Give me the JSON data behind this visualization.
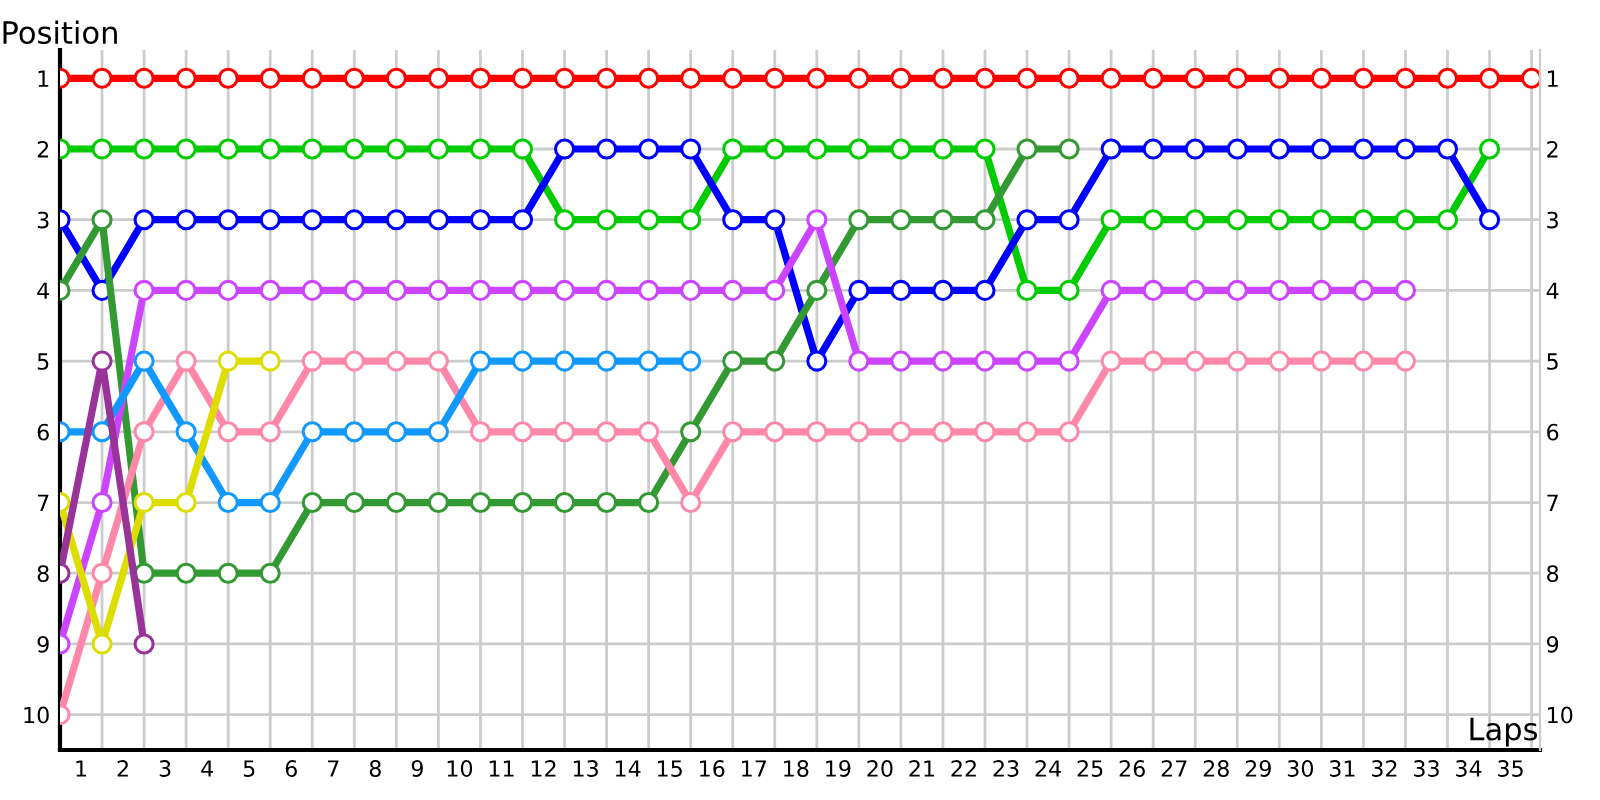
{
  "chart_data": {
    "type": "line",
    "xlabel": "Laps",
    "ylabel": "Position",
    "x": [
      0,
      1,
      2,
      3,
      4,
      5,
      6,
      7,
      8,
      9,
      10,
      11,
      12,
      13,
      14,
      15,
      16,
      17,
      18,
      19,
      20,
      21,
      22,
      23,
      24,
      25,
      26,
      27,
      28,
      29,
      30,
      31,
      32,
      33,
      34,
      35
    ],
    "xlim": [
      0,
      35.2
    ],
    "ylim": [
      10.5,
      0.6
    ],
    "y2lim": [
      10.5,
      0.6
    ],
    "xticks": [
      {
        "value": 0,
        "label": null
      },
      {
        "value": 1,
        "label": null
      },
      {
        "value": 2,
        "label": null
      },
      {
        "value": 3,
        "label": null
      },
      {
        "value": 4,
        "label": null
      },
      {
        "value": 5,
        "label": null
      },
      {
        "value": 6,
        "label": null
      },
      {
        "value": 7,
        "label": null
      },
      {
        "value": 8,
        "label": null
      },
      {
        "value": 9,
        "label": null
      },
      {
        "value": 10,
        "label": null
      },
      {
        "value": 11,
        "label": null
      },
      {
        "value": 12,
        "label": null
      },
      {
        "value": 13,
        "label": null
      },
      {
        "value": 14,
        "label": null
      },
      {
        "value": 15,
        "label": null
      },
      {
        "value": 16,
        "label": null
      },
      {
        "value": 17,
        "label": null
      },
      {
        "value": 18,
        "label": null
      },
      {
        "value": 19,
        "label": null
      },
      {
        "value": 20,
        "label": null
      },
      {
        "value": 21,
        "label": null
      },
      {
        "value": 22,
        "label": null
      },
      {
        "value": 23,
        "label": null
      },
      {
        "value": 24,
        "label": null
      },
      {
        "value": 25,
        "label": null
      },
      {
        "value": 26,
        "label": null
      },
      {
        "value": 27,
        "label": null
      },
      {
        "value": 28,
        "label": null
      },
      {
        "value": 29,
        "label": null
      },
      {
        "value": 30,
        "label": null
      },
      {
        "value": 31,
        "label": null
      },
      {
        "value": 32,
        "label": null
      },
      {
        "value": 33,
        "label": null
      },
      {
        "value": 34,
        "label": null
      },
      {
        "value": 35,
        "label": null
      },
      {
        "value": 0.5,
        "label": "1"
      },
      {
        "value": 1.5,
        "label": "2"
      },
      {
        "value": 2.5,
        "label": "3"
      },
      {
        "value": 3.5,
        "label": "4"
      },
      {
        "value": 4.5,
        "label": "5"
      },
      {
        "value": 5.5,
        "label": "6"
      },
      {
        "value": 6.5,
        "label": "7"
      },
      {
        "value": 7.5,
        "label": "8"
      },
      {
        "value": 8.5,
        "label": "9"
      },
      {
        "value": 9.5,
        "label": "10"
      },
      {
        "value": 10.5,
        "label": "11"
      },
      {
        "value": 11.5,
        "label": "12"
      },
      {
        "value": 12.5,
        "label": "13"
      },
      {
        "value": 13.5,
        "label": "14"
      },
      {
        "value": 14.5,
        "label": "15"
      },
      {
        "value": 15.5,
        "label": "16"
      },
      {
        "value": 16.5,
        "label": "17"
      },
      {
        "value": 17.5,
        "label": "18"
      },
      {
        "value": 18.5,
        "label": "19"
      },
      {
        "value": 19.5,
        "label": "20"
      },
      {
        "value": 20.5,
        "label": "21"
      },
      {
        "value": 21.5,
        "label": "22"
      },
      {
        "value": 22.5,
        "label": "23"
      },
      {
        "value": 23.5,
        "label": "24"
      },
      {
        "value": 24.5,
        "label": "25"
      },
      {
        "value": 25.5,
        "label": "26"
      },
      {
        "value": 26.5,
        "label": "27"
      },
      {
        "value": 27.5,
        "label": "28"
      },
      {
        "value": 28.5,
        "label": "29"
      },
      {
        "value": 29.5,
        "label": "30"
      },
      {
        "value": 30.5,
        "label": "31"
      },
      {
        "value": 31.5,
        "label": "32"
      },
      {
        "value": 32.5,
        "label": "33"
      },
      {
        "value": 33.5,
        "label": "34"
      },
      {
        "value": 34.5,
        "label": "35"
      }
    ],
    "yticks": [
      1,
      2,
      3,
      4,
      5,
      6,
      7,
      8,
      9,
      10
    ],
    "y2ticks": [
      1,
      2,
      3,
      4,
      5,
      6,
      7,
      8,
      9,
      10
    ],
    "grid": true,
    "marker": "circle",
    "line_style": "solid",
    "series": [
      {
        "color": "#ff0000",
        "values": [
          1,
          1,
          1,
          1,
          1,
          1,
          1,
          1,
          1,
          1,
          1,
          1,
          1,
          1,
          1,
          1,
          1,
          1,
          1,
          1,
          1,
          1,
          1,
          1,
          1,
          1,
          1,
          1,
          1,
          1,
          1,
          1,
          1,
          1,
          1,
          1
        ]
      },
      {
        "color": "#00cc00",
        "values": [
          2,
          2,
          2,
          2,
          2,
          2,
          2,
          2,
          2,
          2,
          2,
          2,
          3,
          3,
          3,
          3,
          2,
          2,
          2,
          2,
          2,
          2,
          2,
          4,
          4,
          3,
          3,
          3,
          3,
          3,
          3,
          3,
          3,
          3,
          2,
          null
        ]
      },
      {
        "color": "#0000ff",
        "values": [
          3,
          4,
          3,
          3,
          3,
          3,
          3,
          3,
          3,
          3,
          3,
          3,
          2,
          2,
          2,
          2,
          3,
          3,
          5,
          4,
          4,
          4,
          4,
          3,
          3,
          2,
          2,
          2,
          2,
          2,
          2,
          2,
          2,
          2,
          3,
          null
        ]
      },
      {
        "color": "#339933",
        "values": [
          4,
          3,
          8,
          8,
          8,
          8,
          7,
          7,
          7,
          7,
          7,
          7,
          7,
          7,
          7,
          6,
          5,
          5,
          4,
          3,
          3,
          3,
          3,
          2,
          2,
          null,
          null,
          null,
          null,
          null,
          null,
          null,
          null,
          null,
          null,
          null
        ]
      },
      {
        "color": "#cc44ff",
        "values": [
          9,
          7,
          4,
          4,
          4,
          4,
          4,
          4,
          4,
          4,
          4,
          4,
          4,
          4,
          4,
          4,
          4,
          4,
          3,
          5,
          5,
          5,
          5,
          5,
          5,
          4,
          4,
          4,
          4,
          4,
          4,
          4,
          4,
          null,
          null,
          null
        ]
      },
      {
        "color": "#ff88aa",
        "values": [
          10,
          8,
          6,
          5,
          6,
          6,
          5,
          5,
          5,
          5,
          6,
          6,
          6,
          6,
          6,
          7,
          6,
          6,
          6,
          6,
          6,
          6,
          6,
          6,
          6,
          5,
          5,
          5,
          5,
          5,
          5,
          5,
          5,
          null,
          null,
          null
        ]
      },
      {
        "color": "#1199ff",
        "values": [
          6,
          6,
          5,
          6,
          7,
          7,
          6,
          6,
          6,
          6,
          5,
          5,
          5,
          5,
          5,
          5,
          null,
          null,
          null,
          null,
          null,
          null,
          null,
          null,
          null,
          null,
          null,
          null,
          null,
          null,
          null,
          null,
          null,
          null,
          null,
          null
        ]
      },
      {
        "color": "#dddd00",
        "values": [
          7,
          9,
          7,
          7,
          5,
          5,
          null,
          null,
          null,
          null,
          null,
          null,
          null,
          null,
          null,
          null,
          null,
          null,
          null,
          null,
          null,
          null,
          null,
          null,
          null,
          null,
          null,
          null,
          null,
          null,
          null,
          null,
          null,
          null,
          null,
          null
        ]
      },
      {
        "color": "#993399",
        "values": [
          8,
          5,
          9,
          null,
          null,
          null,
          null,
          null,
          null,
          null,
          null,
          null,
          null,
          null,
          null,
          null,
          null,
          null,
          null,
          null,
          null,
          null,
          null,
          null,
          null,
          null,
          null,
          null,
          null,
          null,
          null,
          null,
          null,
          null,
          null,
          null
        ]
      }
    ]
  }
}
